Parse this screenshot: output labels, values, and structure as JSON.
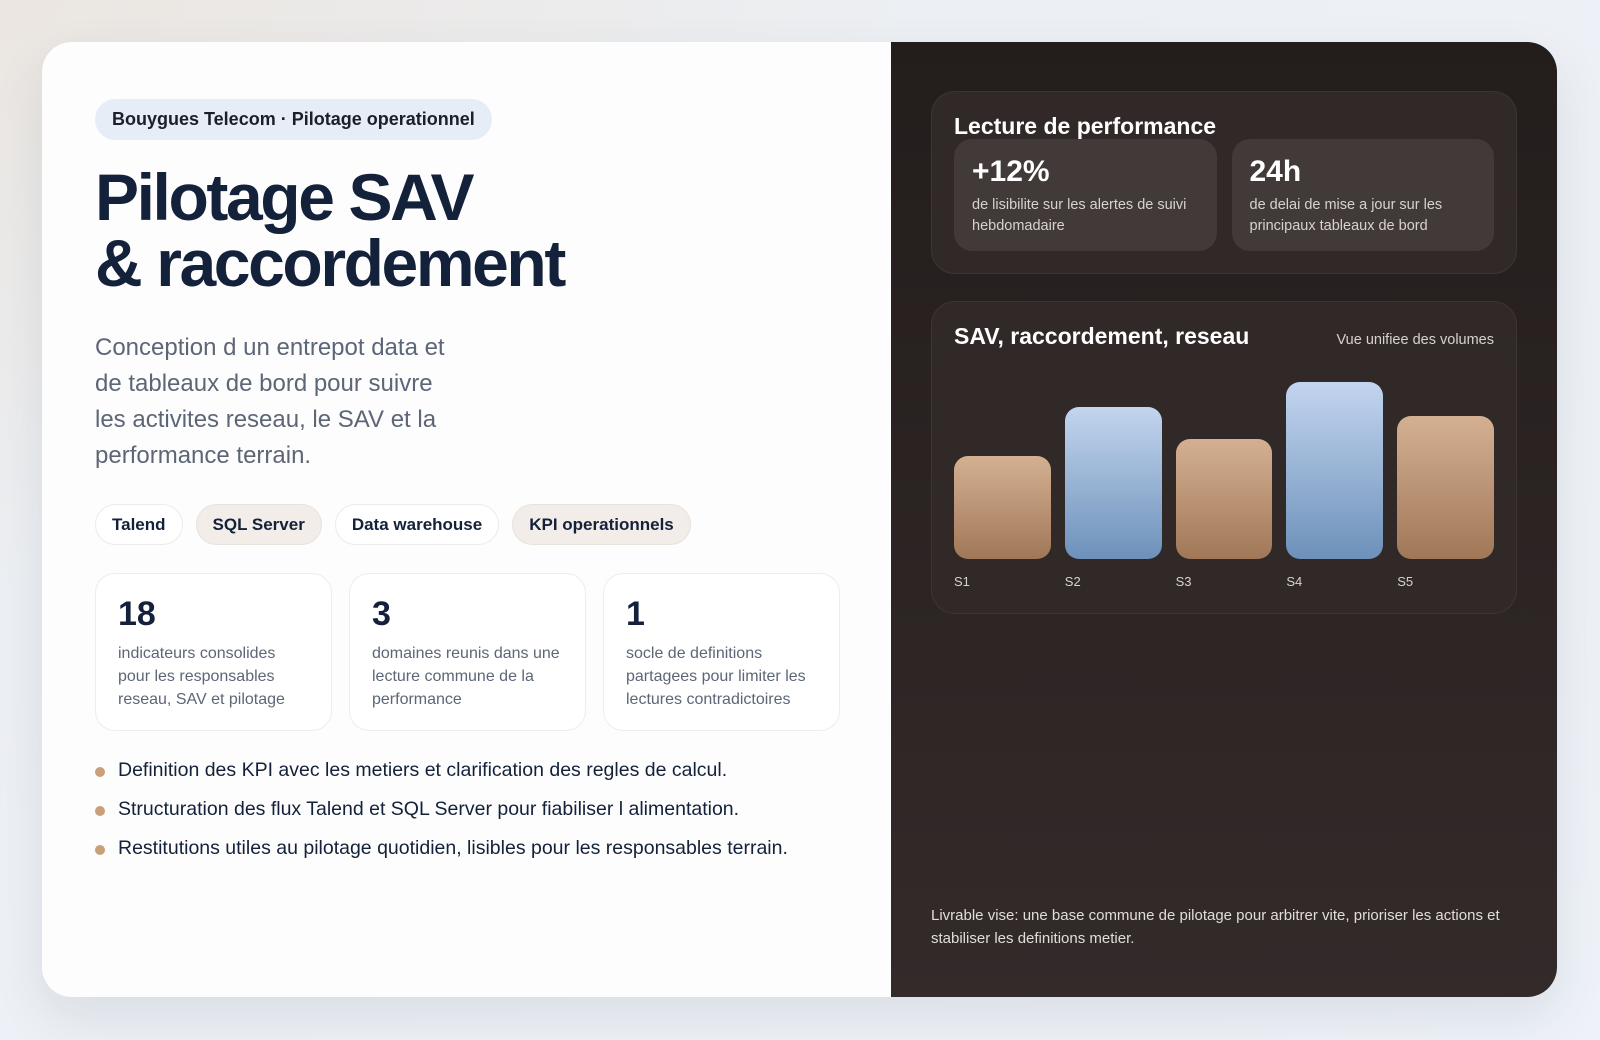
{
  "hero": {
    "eyebrow": "Bouygues Telecom · Pilotage operationnel",
    "title_line1": "Pilotage SAV",
    "title_line2": "& raccordement",
    "description": "Conception d un entrepot data et de tableaux de bord pour suivre les activites reseau, le SAV et la performance terrain."
  },
  "tags": [
    {
      "label": "Talend",
      "tinted": false
    },
    {
      "label": "SQL Server",
      "tinted": true
    },
    {
      "label": "Data warehouse",
      "tinted": false
    },
    {
      "label": "KPI operationnels",
      "tinted": true
    }
  ],
  "stats": [
    {
      "value": "18",
      "label": "indicateurs consolides pour les responsables reseau, SAV et pilotage"
    },
    {
      "value": "3",
      "label": "domaines reunis dans une lecture commune de la performance"
    },
    {
      "value": "1",
      "label": "socle de definitions partagees pour limiter les lectures contradictoires"
    }
  ],
  "bullets": [
    "Definition des KPI avec les metiers et clarification des regles de calcul.",
    "Structuration des flux Talend et SQL Server pour fiabiliser l alimentation.",
    "Restitutions utiles au pilotage quotidien, lisibles pour les responsables terrain."
  ],
  "performance": {
    "title": "Lecture de performance",
    "kpis": [
      {
        "value": "+12%",
        "label": "de lisibilite sur les alertes de suivi hebdomadaire"
      },
      {
        "value": "24h",
        "label": "de delai de mise a jour sur les principaux tableaux de bord"
      }
    ]
  },
  "chart": {
    "title": "SAV, raccordement, reseau",
    "subtitle": "Vue unifiee des volumes"
  },
  "chart_data": {
    "type": "bar",
    "title": "SAV, raccordement, reseau",
    "subtitle": "Vue unifiee des volumes",
    "categories": [
      "S1",
      "S2",
      "S3",
      "S4",
      "S5"
    ],
    "values": [
      58,
      86,
      68,
      100,
      81
    ],
    "value_unit": "relative height (% of tallest bar)",
    "bar_colors": [
      "warm",
      "cool",
      "warm",
      "cool",
      "warm"
    ],
    "xlabel": "",
    "ylabel": "",
    "grid": false,
    "legend": null
  },
  "colors": {
    "title": "#14213a",
    "muted": "#5d6677",
    "eyebrow_bg": "#e6edf7",
    "bullet_dot": "#c8a07a",
    "dark_panel": "#231d1c",
    "bar_warm": "#c09a7a",
    "bar_cool": "#94b0d6"
  },
  "footer_note": "Livrable vise: une base commune de pilotage pour arbitrer vite, prioriser les actions et stabiliser les definitions metier."
}
